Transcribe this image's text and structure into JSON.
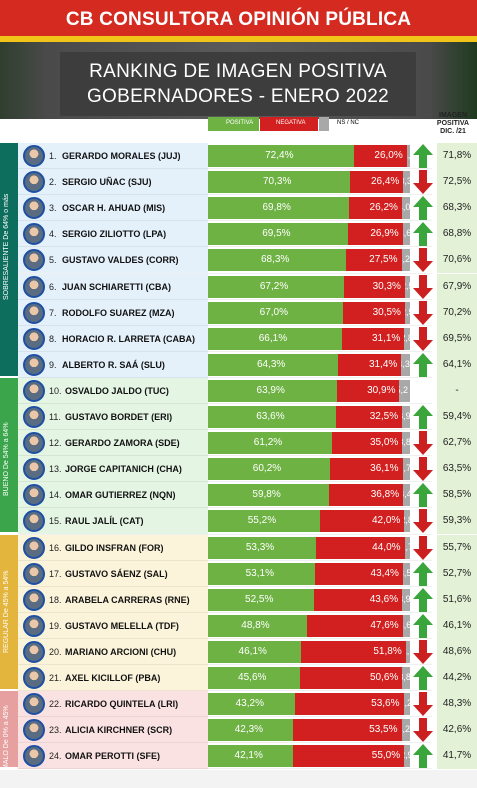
{
  "header": {
    "brand": "CB CONSULTORA OPINIÓN PÚBLICA",
    "title_line1": "RANKING DE IMAGEN POSITIVA",
    "title_line2": "GOBERNADORES - ENERO 2022"
  },
  "legend": {
    "positive": "POSITIVA",
    "negative": "NEGATIVA",
    "nsnc": "NS / NC"
  },
  "previous_header": {
    "line1": "IMAGEN",
    "line2": "POSITIVA",
    "line3": "DIC. /21"
  },
  "colors": {
    "positive": "#6fb244",
    "negative": "#d21f1f",
    "nsnc": "#a8a8a8",
    "up": "#3aa53a",
    "down": "#cc1f1f"
  },
  "bands": [
    {
      "label": "SOBRESALIENTE",
      "sublabel": "De 64% o más",
      "from": 1,
      "to": 9,
      "band_color": "#0e6e5e",
      "row_color": "#e4f1fb"
    },
    {
      "label": "BUENO",
      "sublabel": "De 54% a 64%",
      "from": 10,
      "to": 15,
      "band_color": "#3aa54a",
      "row_color": "#e4f5e4"
    },
    {
      "label": "REGULAR",
      "sublabel": "De 45% a 54%",
      "from": 16,
      "to": 21,
      "band_color": "#e3b53c",
      "row_color": "#fbf4da"
    },
    {
      "label": "MALO",
      "sublabel": "De 0% a 45%",
      "from": 22,
      "to": 24,
      "band_color": "#e6a0a0",
      "row_color": "#fbe2e2"
    }
  ],
  "chart_data": {
    "type": "bar",
    "title": "RANKING DE IMAGEN POSITIVA GOBERNADORES - ENERO 2022",
    "stacked": true,
    "categories": [
      "GERARDO MORALES (JUJ)",
      "SERGIO UÑAC (SJU)",
      "OSCAR H. AHUAD (MIS)",
      "SERGIO ZILIOTTO (LPA)",
      "GUSTAVO VALDES (CORR)",
      "JUAN SCHIARETTI (CBA)",
      "RODOLFO SUAREZ (MZA)",
      "HORACIO R. LARRETA (CABA)",
      "ALBERTO R. SAÁ (SLU)",
      "OSVALDO JALDO (TUC)",
      "GUSTAVO BORDET (ERI)",
      "GERARDO ZAMORA (SDE)",
      "JORGE CAPITANICH (CHA)",
      "OMAR GUTIERREZ (NQN)",
      "RAUL JALÍL (CAT)",
      "GILDO INSFRAN (FOR)",
      "GUSTAVO SÁENZ (SAL)",
      "ARABELA CARRERAS (RNE)",
      "GUSTAVO MELELLA (TDF)",
      "MARIANO ARCIONI (CHU)",
      "AXEL KICILLOF (PBA)",
      "RICARDO QUINTELA (LRI)",
      "ALICIA KIRCHNER (SCR)",
      "OMAR PEROTTI (SFE)"
    ],
    "series": [
      {
        "name": "POSITIVA",
        "values": [
          72.4,
          70.3,
          69.8,
          69.5,
          68.3,
          67.2,
          67.0,
          66.1,
          64.3,
          63.9,
          63.6,
          61.2,
          60.2,
          59.8,
          55.2,
          53.3,
          53.1,
          52.5,
          48.8,
          46.1,
          45.6,
          43.2,
          42.3,
          42.1
        ],
        "labels": [
          "72,4%",
          "70,3%",
          "69,8%",
          "69,5%",
          "68,3%",
          "67,2%",
          "67,0%",
          "66,1%",
          "64,3%",
          "63,9%",
          "63,6%",
          "61,2%",
          "60,2%",
          "59,8%",
          "55,2%",
          "53,3%",
          "53,1%",
          "52,5%",
          "48,8%",
          "46,1%",
          "45,6%",
          "43,2%",
          "42,3%",
          "42,1%"
        ]
      },
      {
        "name": "NEGATIVA",
        "values": [
          26.0,
          26.4,
          26.2,
          26.9,
          27.5,
          30.3,
          30.5,
          31.1,
          31.4,
          30.9,
          32.5,
          35.0,
          36.1,
          36.8,
          42.0,
          44.0,
          43.4,
          43.6,
          47.6,
          51.8,
          50.6,
          53.6,
          53.5,
          55.0
        ],
        "labels": [
          "26,0%",
          "26,4%",
          "26,2%",
          "26,9%",
          "27,5%",
          "30,3%",
          "30,5%",
          "31,1%",
          "31,4%",
          "30,9%",
          "32,5%",
          "35,0%",
          "36,1%",
          "36,8%",
          "42,0%",
          "44,0%",
          "43,4%",
          "43,6%",
          "47,6%",
          "51,8%",
          "50,6%",
          "53,6%",
          "53,5%",
          "55,0%"
        ]
      },
      {
        "name": "NS / NC",
        "values": [
          1.6,
          3.3,
          4.0,
          3.6,
          4.2,
          2.5,
          2.5,
          2.8,
          4.3,
          5.2,
          3.9,
          3.8,
          3.7,
          3.4,
          2.8,
          2.7,
          3.5,
          3.9,
          3.6,
          2.1,
          3.8,
          3.2,
          4.2,
          2.9
        ],
        "labels": [
          "1,6",
          "3,3",
          "4,0",
          "3,6",
          "4,2",
          "2,5",
          "2,5",
          "2,8",
          "4,3",
          "5,2",
          "3,9",
          "3,8",
          "3,7",
          "3,4",
          "2,8",
          "2,7",
          "3,5",
          "3,9",
          "3,6",
          "2,1",
          "3,8",
          "3,2",
          "4,2",
          "2,9"
        ]
      }
    ],
    "ranks": [
      "1.",
      "2.",
      "3.",
      "4.",
      "5.",
      "6.",
      "7.",
      "8.",
      "9.",
      "10.",
      "11.",
      "12.",
      "13.",
      "14.",
      "15.",
      "16.",
      "17.",
      "18.",
      "19.",
      "20.",
      "21.",
      "22.",
      "23.",
      "24."
    ],
    "trend": [
      "up",
      "down",
      "up",
      "up",
      "down",
      "down",
      "down",
      "down",
      "up",
      "none",
      "up",
      "down",
      "down",
      "up",
      "down",
      "down",
      "up",
      "up",
      "up",
      "down",
      "up",
      "down",
      "down",
      "up"
    ],
    "previous": [
      "71,8%",
      "72,5%",
      "68,3%",
      "68,8%",
      "70,6%",
      "67,9%",
      "70,2%",
      "69,5%",
      "64,1%",
      "-",
      "59,4%",
      "62,7%",
      "63,5%",
      "58,5%",
      "59,3%",
      "55,7%",
      "52,7%",
      "51,6%",
      "46,1%",
      "48,6%",
      "44,2%",
      "48,3%",
      "42,6%",
      "41,7%"
    ],
    "xlim": [
      0,
      100
    ],
    "legend": "top"
  }
}
